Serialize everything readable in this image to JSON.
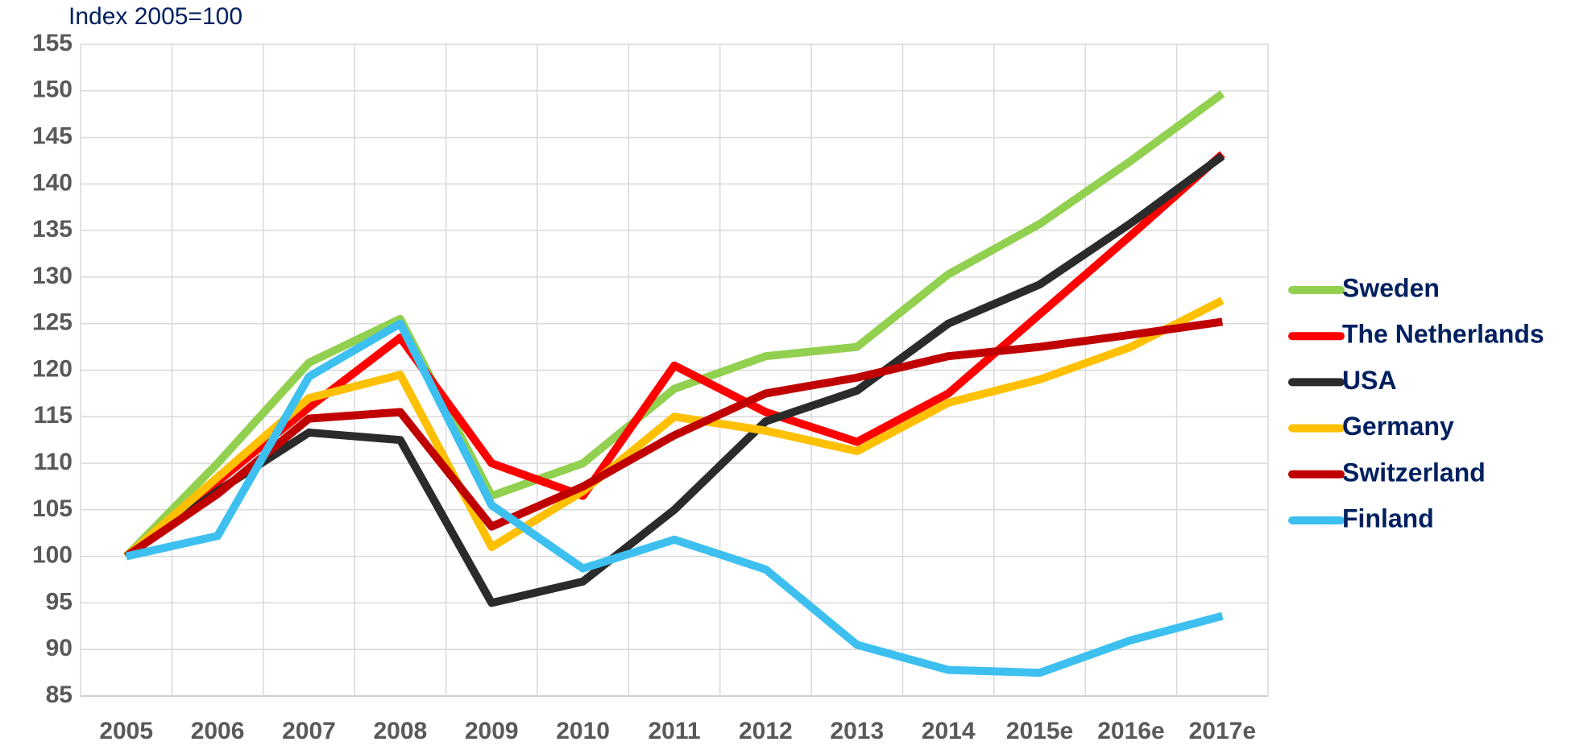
{
  "chart_data": {
    "type": "line",
    "title": "Index 2005=100",
    "categories": [
      "2005",
      "2006",
      "2007",
      "2008",
      "2009",
      "2010",
      "2011",
      "2012",
      "2013",
      "2014",
      "2015e",
      "2016e",
      "2017e"
    ],
    "series": [
      {
        "name": "Sweden",
        "color": "#92d050",
        "values": [
          100,
          110,
          120.8,
          125.5,
          106.5,
          110,
          118,
          121.5,
          122.5,
          130.3,
          135.7,
          142.5,
          149.7
        ]
      },
      {
        "name": "The Netherlands",
        "color": "#ff0000",
        "values": [
          100,
          108,
          116,
          123.5,
          110,
          106.5,
          120.5,
          115.5,
          112.3,
          117.5,
          126,
          134.5,
          143.2
        ]
      },
      {
        "name": "USA",
        "color": "#2b2b2b",
        "values": [
          100,
          107,
          113.3,
          112.5,
          95,
          97.3,
          105,
          114.5,
          117.8,
          125,
          129.2,
          135.8,
          143
        ]
      },
      {
        "name": "Germany",
        "color": "#ffc000",
        "values": [
          100,
          108.5,
          117,
          119.5,
          101,
          107,
          115,
          113.5,
          111.3,
          116.5,
          119,
          122.5,
          127.5
        ]
      },
      {
        "name": "Switzerland",
        "color": "#c00000",
        "values": [
          100,
          106.7,
          114.8,
          115.5,
          103.2,
          107.5,
          113,
          117.5,
          119.2,
          121.5,
          122.5,
          123.8,
          125.2
        ]
      },
      {
        "name": "Finland",
        "color": "#3dc0f0",
        "values": [
          100,
          102.2,
          119.3,
          125,
          105.5,
          98.7,
          101.8,
          98.6,
          90.5,
          87.8,
          87.5,
          91,
          93.6
        ]
      }
    ],
    "ylim": [
      85,
      155
    ],
    "yticks": [
      85,
      90,
      95,
      100,
      105,
      110,
      115,
      120,
      125,
      130,
      135,
      140,
      145,
      150,
      155
    ],
    "grid": true
  }
}
